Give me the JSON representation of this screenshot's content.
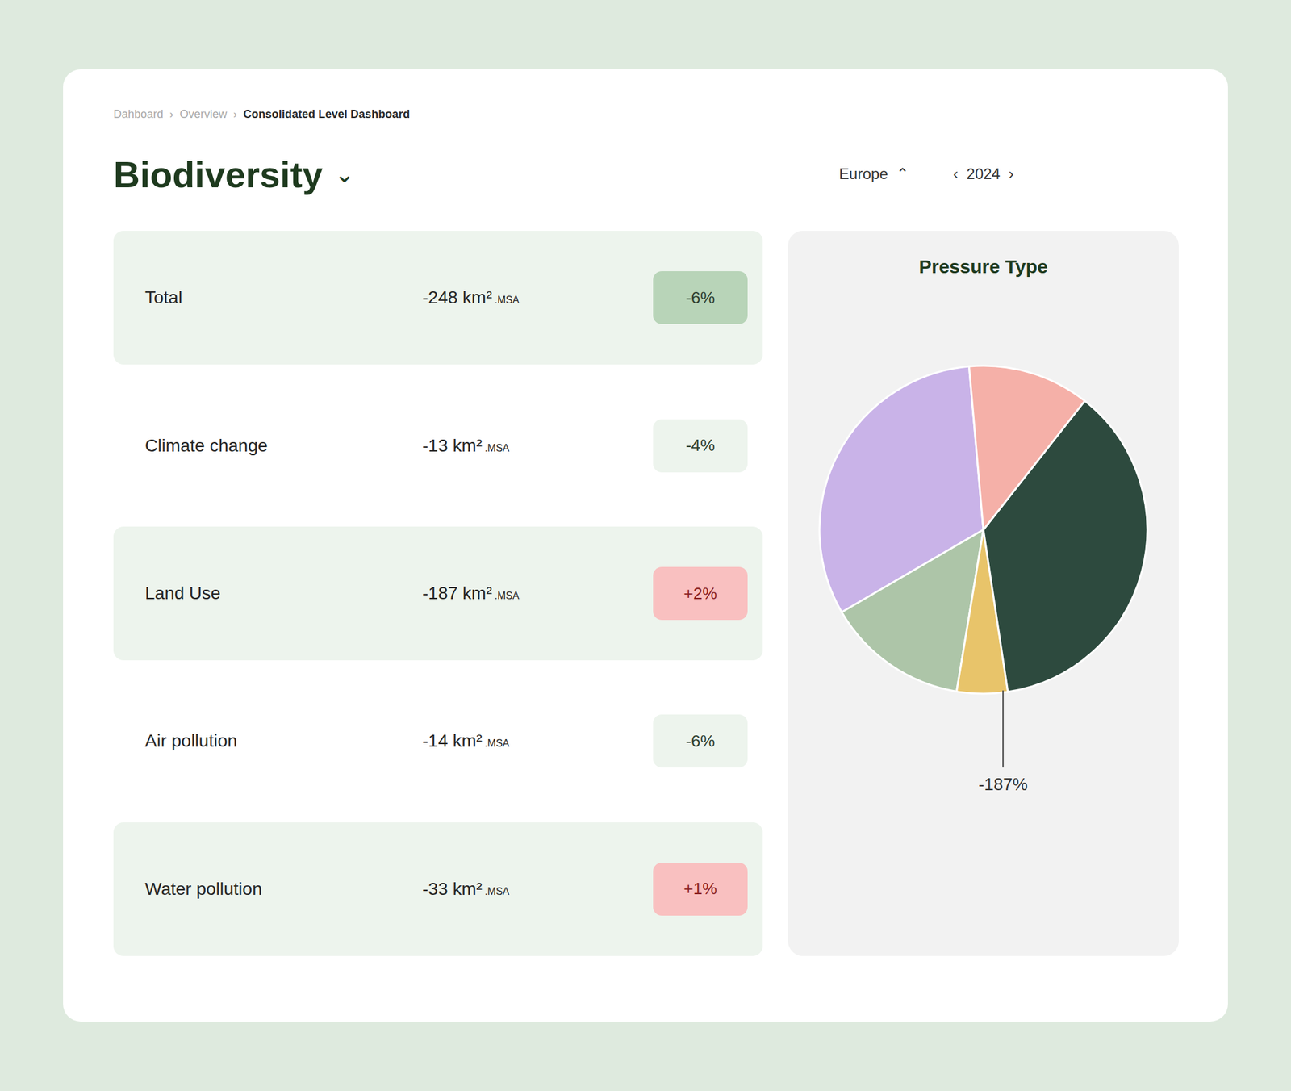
{
  "page": {
    "breadcrumb": "Dahboard  ›  Overview  ›  ",
    "breadcrumb_current": "Consolidated Level Dashboard",
    "title": "Biodiversity",
    "title_chevron": " ⌄",
    "controls": [
      "Europe  ⌃",
      "‹  2024  ›"
    ]
  },
  "chart_data": [
    {
      "type": "table",
      "categories": [
        "Total",
        "Climate change",
        "Land Use",
        "Air pollution",
        "Water pollution"
      ],
      "series": [
        {
          "values": [
            -248,
            -13,
            -187,
            -14,
            -33
          ],
          "value_labels": [
            "-248 km²",
            "-13 km²",
            "-187 km²",
            "-14 km²",
            "-33 km²"
          ],
          "value_suffix": ".MSA"
        },
        {
          "type": "badge",
          "values": [
            -6,
            -4,
            2,
            -6,
            1
          ],
          "value_labels": [
            "-6%",
            "-4%",
            "+2%",
            "-6%",
            "+1%"
          ],
          "colors": [
            "#b8d4b8",
            "#edf4ed",
            "#f9c0c0",
            "#edf4ed",
            "#f9c0c0"
          ]
        }
      ]
    },
    {
      "type": "pie",
      "title": "Pressure Type",
      "values": [
        32,
        14,
        5,
        37,
        12
      ],
      "colors": [
        "#c9b3e8",
        "#adc5a8",
        "#e8c46a",
        "#2d4a3e",
        "#f5b0a8"
      ],
      "annotations": [
        {
          "text": "-187%"
        }
      ]
    }
  ]
}
